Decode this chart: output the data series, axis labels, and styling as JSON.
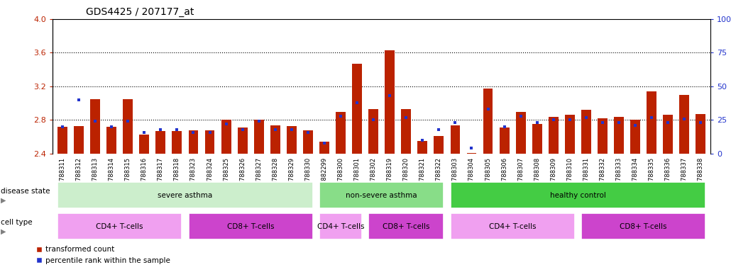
{
  "title": "GDS4425 / 207177_at",
  "samples": [
    "GSM788311",
    "GSM788312",
    "GSM788313",
    "GSM788314",
    "GSM788315",
    "GSM788316",
    "GSM788317",
    "GSM788318",
    "GSM788323",
    "GSM788324",
    "GSM788325",
    "GSM788326",
    "GSM788327",
    "GSM788328",
    "GSM788329",
    "GSM788330",
    "GSM7882299",
    "GSM788300",
    "GSM788301",
    "GSM788302",
    "GSM788319",
    "GSM788320",
    "GSM788321",
    "GSM788322",
    "GSM788303",
    "GSM788304",
    "GSM788305",
    "GSM788306",
    "GSM788307",
    "GSM788308",
    "GSM788309",
    "GSM788310",
    "GSM788331",
    "GSM788332",
    "GSM788333",
    "GSM788334",
    "GSM788335",
    "GSM788336",
    "GSM788337",
    "GSM788338"
  ],
  "red_values": [
    2.72,
    2.73,
    3.05,
    2.72,
    3.05,
    2.63,
    2.67,
    2.67,
    2.68,
    2.68,
    2.8,
    2.71,
    2.8,
    2.74,
    2.73,
    2.68,
    2.54,
    2.9,
    3.47,
    2.93,
    3.63,
    2.93,
    2.55,
    2.61,
    2.74,
    2.41,
    3.17,
    2.71,
    2.9,
    2.75,
    2.84,
    2.86,
    2.92,
    2.82,
    2.84,
    2.8,
    3.14,
    2.86,
    3.1,
    2.87
  ],
  "blue_pct": [
    20,
    40,
    24,
    20,
    24,
    16,
    18,
    18,
    16,
    16,
    22,
    18,
    24,
    18,
    18,
    16,
    8,
    28,
    38,
    25,
    43,
    27,
    10,
    18,
    23,
    4,
    33,
    20,
    28,
    23,
    25,
    25,
    27,
    23,
    23,
    21,
    27,
    23,
    26,
    23
  ],
  "ylim_left": [
    2.4,
    4.0
  ],
  "ylim_right": [
    0,
    100
  ],
  "yticks_left": [
    2.4,
    2.8,
    3.2,
    3.6,
    4.0
  ],
  "yticks_right": [
    0,
    25,
    50,
    75,
    100
  ],
  "dotted_lines": [
    2.8,
    3.2,
    3.6
  ],
  "red_color": "#bb2200",
  "blue_color": "#2233cc",
  "disease_color_1": "#cceecc",
  "disease_color_2": "#88dd88",
  "disease_color_3": "#44cc44",
  "cd4_color": "#f0a0f0",
  "cd8_color": "#cc44cc",
  "title_fontsize": 10,
  "tick_fontsize": 6,
  "label_fontsize": 8,
  "disease_groups": [
    {
      "label": "severe asthma",
      "start": 0,
      "end": 15
    },
    {
      "label": "non-severe asthma",
      "start": 16,
      "end": 23
    },
    {
      "label": "healthy control",
      "start": 24,
      "end": 39
    }
  ],
  "cell_groups": [
    {
      "label": "CD4+ T-cells",
      "start": 0,
      "end": 7
    },
    {
      "label": "CD8+ T-cells",
      "start": 8,
      "end": 15
    },
    {
      "label": "CD4+ T-cells",
      "start": 16,
      "end": 18
    },
    {
      "label": "CD8+ T-cells",
      "start": 19,
      "end": 23
    },
    {
      "label": "CD4+ T-cells",
      "start": 24,
      "end": 31
    },
    {
      "label": "CD8+ T-cells",
      "start": 32,
      "end": 39
    }
  ]
}
